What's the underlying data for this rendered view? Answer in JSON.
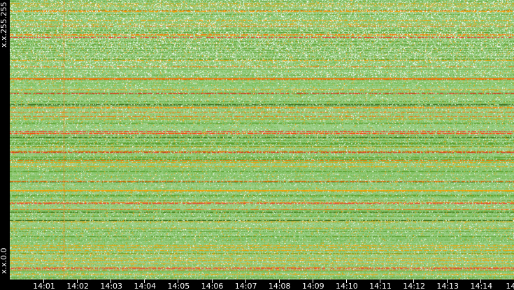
{
  "chart_data": {
    "type": "heatmap",
    "title": "",
    "xlabel": "",
    "ylabel": "",
    "x_tick_labels": [
      "14:01",
      "14:02",
      "14:03",
      "14:04",
      "14:05",
      "14:06",
      "14:07",
      "14:08",
      "14:09",
      "14:10",
      "14:11",
      "14:12",
      "14:13",
      "14:14",
      "14"
    ],
    "y_tick_labels": {
      "top": "x.x.255.255",
      "bottom": "x.x.0.0"
    },
    "color_scale": [
      "#ffffff",
      "#9fd08a",
      "#7cbf5c",
      "#5a9e2a",
      "#2f5f10",
      "#f5a000",
      "#ff6a00",
      "#ff1a1a"
    ],
    "background": "#000000",
    "grid": false,
    "legend": "none"
  }
}
